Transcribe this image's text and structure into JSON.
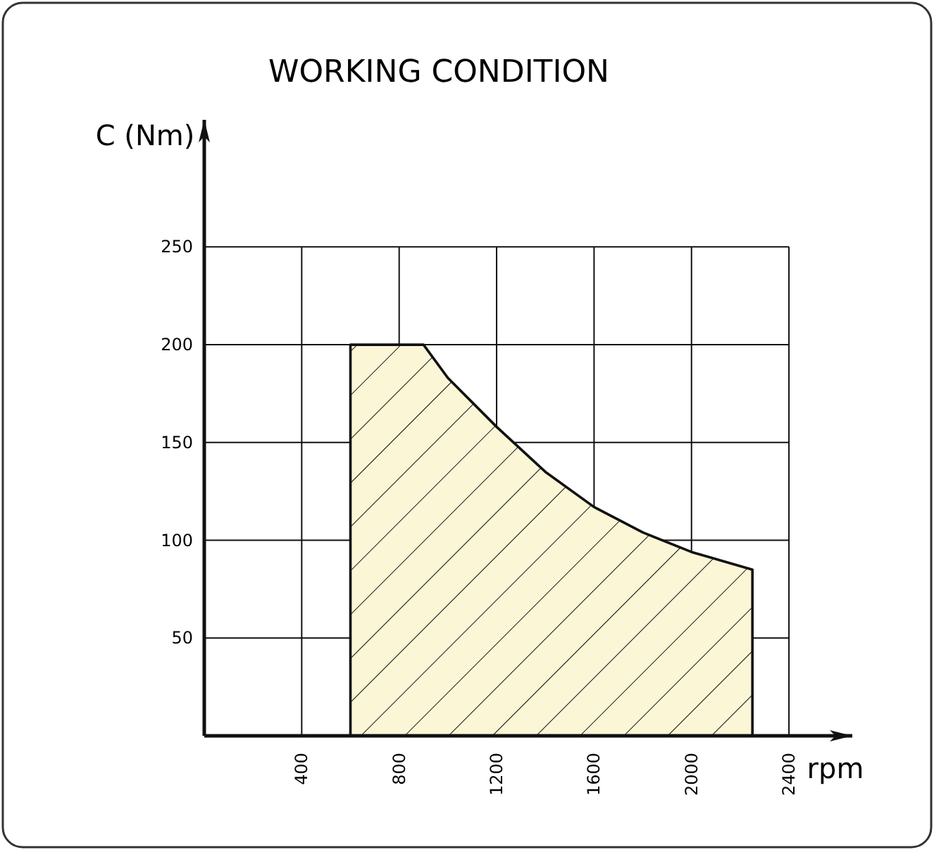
{
  "chart_data": {
    "type": "area",
    "title": "WORKING CONDITION",
    "xlabel": "rpm",
    "ylabel": "C (Nm)",
    "xlim": [
      0,
      2660
    ],
    "ylim": [
      0,
      315
    ],
    "xticks": [
      400,
      800,
      1200,
      1600,
      2000,
      2400
    ],
    "yticks": [
      50,
      100,
      150,
      200,
      250
    ],
    "grid": true,
    "series": [
      {
        "color": "#fbf6d6",
        "x": [
          600,
          900,
          1000,
          1200,
          1400,
          1600,
          1800,
          2000,
          2250
        ],
        "values": [
          200,
          200,
          183,
          158,
          135,
          117,
          104,
          94,
          85
        ]
      }
    ]
  }
}
